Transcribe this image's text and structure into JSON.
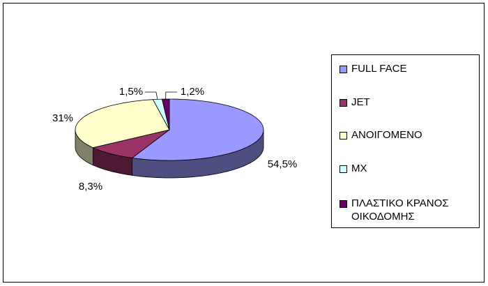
{
  "chart_data": {
    "type": "pie3d",
    "categories": [
      "FULL FACE",
      "JET",
      "ΑΝΟΙΓΟΜΕΝΟ",
      "MX",
      "ΠΛΑΣΤΙΚΟ ΚΡΑΝΟΣ ΟΙΚΟΔΟΜΗΣ"
    ],
    "values": [
      54.5,
      8.3,
      31,
      1.5,
      1.2
    ],
    "value_labels": [
      "54,5%",
      "8,3%",
      "31%",
      "1,5%",
      "1,2%"
    ],
    "colors": [
      "#9999ff",
      "#993366",
      "#ffffcc",
      "#ccffff",
      "#660066"
    ],
    "legend": "right"
  }
}
